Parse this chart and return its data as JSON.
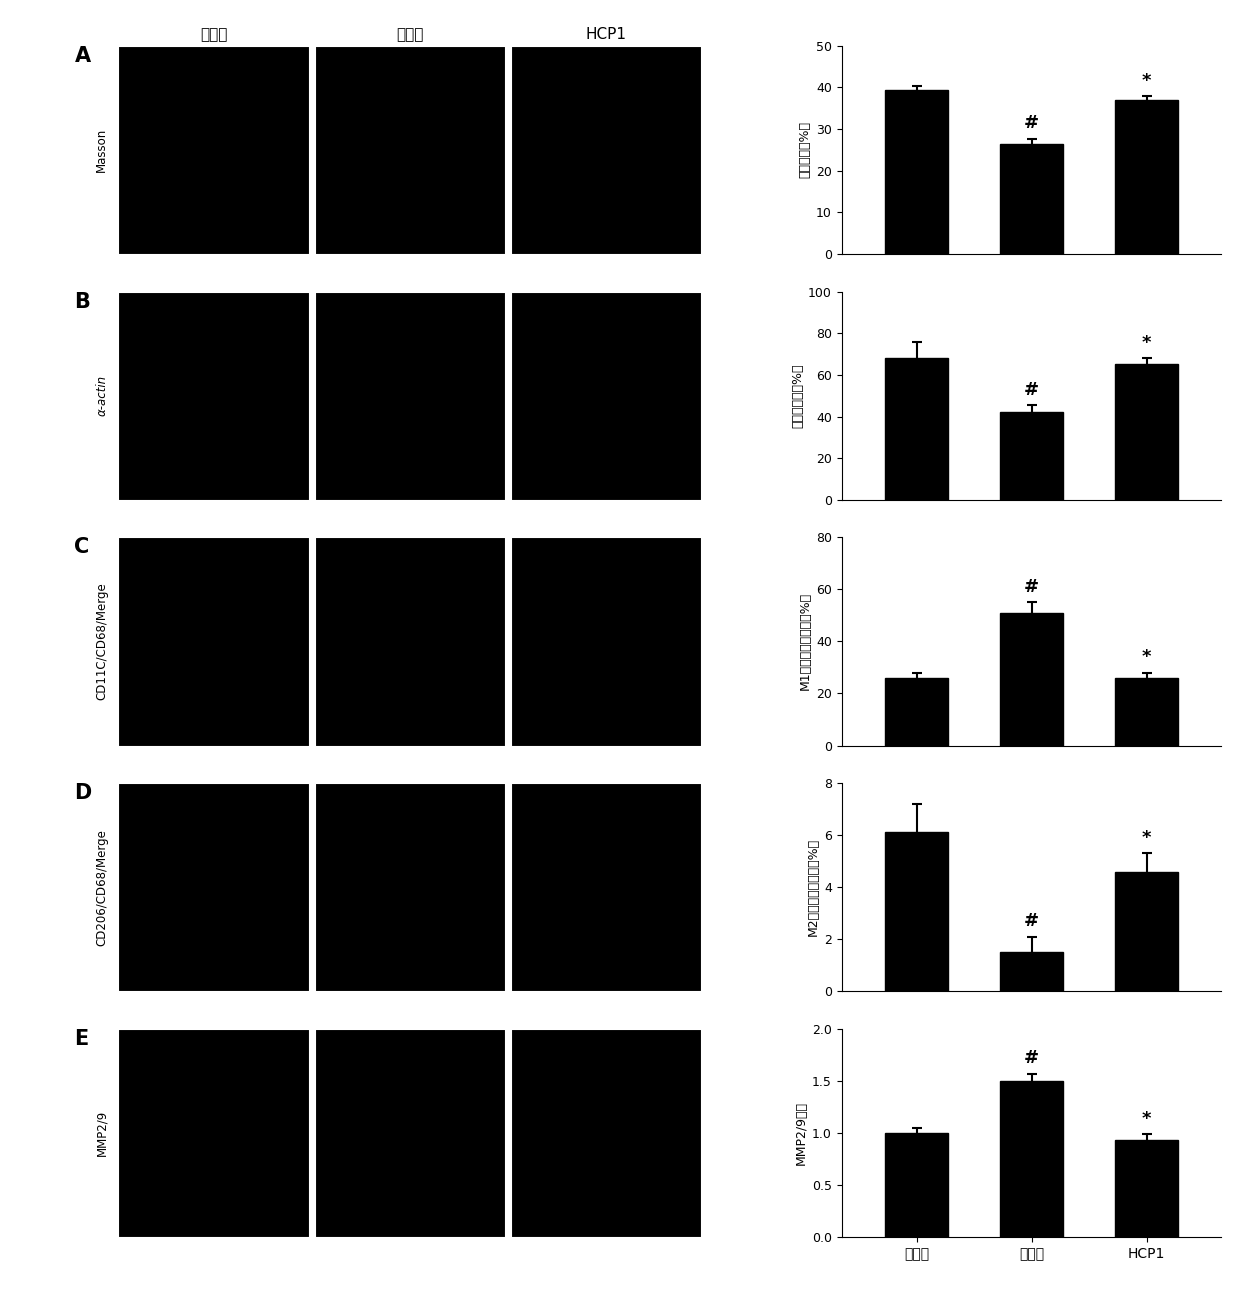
{
  "panel_labels": [
    "A",
    "B",
    "C",
    "D",
    "E"
  ],
  "row_labels": [
    "Masson",
    "α-actin",
    "CD11C/CD68/Merge",
    "CD206/CD68/Merge",
    "MMP2/9"
  ],
  "col_labels": [
    "基准组",
    "对照组",
    "HCP1"
  ],
  "bar_groups": [
    {
      "ylabel": "胶原含量（%）",
      "ylim": [
        0,
        50
      ],
      "yticks": [
        0,
        10,
        20,
        30,
        40,
        50
      ],
      "values": [
        39.5,
        26.5,
        37.0
      ],
      "errors": [
        0.8,
        1.2,
        1.0
      ],
      "annotations": [
        "",
        "#",
        "*"
      ]
    },
    {
      "ylabel": "平滑肌含量（%）",
      "ylim": [
        0,
        100
      ],
      "yticks": [
        0,
        20,
        40,
        60,
        80,
        100
      ],
      "values": [
        68.0,
        42.0,
        65.0
      ],
      "errors": [
        8.0,
        3.5,
        3.0
      ],
      "annotations": [
        "",
        "#",
        "*"
      ]
    },
    {
      "ylabel": "M1型巨噬细胞含量（%）",
      "ylim": [
        0,
        80
      ],
      "yticks": [
        0,
        20,
        40,
        60,
        80
      ],
      "values": [
        26.0,
        51.0,
        26.0
      ],
      "errors": [
        2.0,
        4.0,
        2.0
      ],
      "annotations": [
        "",
        "#",
        "*"
      ]
    },
    {
      "ylabel": "M2型巨噬细胞含量（%）",
      "ylim": [
        0,
        8
      ],
      "yticks": [
        0,
        2,
        4,
        6,
        8
      ],
      "values": [
        6.1,
        1.5,
        4.6
      ],
      "errors": [
        1.1,
        0.6,
        0.7
      ],
      "annotations": [
        "",
        "#",
        "*"
      ]
    },
    {
      "ylabel": "MMP2/9活性",
      "ylim": [
        0.0,
        2.0
      ],
      "yticks": [
        0.0,
        0.5,
        1.0,
        1.5,
        2.0
      ],
      "values": [
        1.0,
        1.5,
        0.93
      ],
      "errors": [
        0.05,
        0.07,
        0.06
      ],
      "annotations": [
        "",
        "#",
        "*"
      ]
    }
  ],
  "xtick_labels": [
    "基准组",
    "对照组",
    "HCP1"
  ],
  "bar_color": "#000000",
  "bar_width": 0.55,
  "fig_width": 12.4,
  "fig_height": 13.09,
  "fig_dpi": 100
}
